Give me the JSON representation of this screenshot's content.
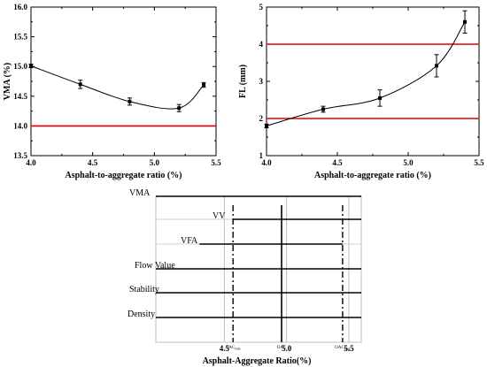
{
  "chart_data": [
    {
      "type": "scatter",
      "title": "",
      "xlabel": "Asphalt-to-aggregate ratio (%)",
      "ylabel": "VMA (%)",
      "xlim": [
        4.0,
        5.5
      ],
      "ylim": [
        13.5,
        16.0
      ],
      "xticks": [
        "4.0",
        "4.5",
        "5.0",
        "5.5"
      ],
      "yticks": [
        "13.5",
        "14.0",
        "14.5",
        "15.0",
        "15.5",
        "16.0"
      ],
      "series": [
        {
          "x": [
            4.0,
            4.4,
            4.8,
            5.2,
            5.4
          ],
          "y": [
            15.01,
            14.7,
            14.41,
            14.3,
            14.69
          ],
          "err": [
            0.03,
            0.07,
            0.06,
            0.06,
            0.04
          ]
        }
      ],
      "reference_lines": [
        {
          "axis": "y",
          "value": 14.0,
          "color": "#e00000"
        }
      ],
      "curve": "smooth fitted line through points"
    },
    {
      "type": "scatter",
      "title": "",
      "xlabel": "Asphalt-to-aggregate ratio (%)",
      "ylabel": "FL (mm)",
      "xlim": [
        4.0,
        5.5
      ],
      "ylim": [
        1.0,
        5.0
      ],
      "xticks": [
        "4.0",
        "4.5",
        "5.0",
        "5.5"
      ],
      "yticks": [
        "1",
        "2",
        "3",
        "4",
        "5"
      ],
      "series": [
        {
          "x": [
            4.0,
            4.4,
            4.8,
            5.2,
            5.4
          ],
          "y": [
            1.8,
            2.25,
            2.55,
            3.42,
            4.6
          ],
          "err": [
            0.05,
            0.08,
            0.22,
            0.3,
            0.3
          ]
        }
      ],
      "reference_lines": [
        {
          "axis": "y",
          "value": 2.0,
          "color": "#e00000"
        },
        {
          "axis": "y",
          "value": 4.0,
          "color": "#e00000"
        }
      ],
      "curve": "smooth fitted line through points"
    },
    {
      "type": "range",
      "title": "",
      "xlabel": "Asphalt-Aggregate Ratio(%)",
      "ylabel": "",
      "xlim": [
        3.95,
        5.6
      ],
      "xticks": [
        "4.5",
        "5.0",
        "5.5"
      ],
      "rows": [
        {
          "label": "VMA",
          "x_start": 3.95,
          "x_end": 5.6
        },
        {
          "label": "VV",
          "x_start": 4.57,
          "x_end": 5.6
        },
        {
          "label": "VFA",
          "x_start": 4.3,
          "x_end": 5.45
        },
        {
          "label": "Flow Value",
          "x_start": 3.95,
          "x_end": 5.6
        },
        {
          "label": "Stability",
          "x_start": 3.95,
          "x_end": 5.6
        },
        {
          "label": "Density",
          "x_start": 3.95,
          "x_end": 5.6
        }
      ],
      "markers": [
        {
          "label": "OAC",
          "sub": "min",
          "x": 4.57,
          "style": "dash-dot"
        },
        {
          "label": "OAC",
          "sub": "",
          "x": 4.96,
          "style": "solid"
        },
        {
          "label": "OAC",
          "sub": "max",
          "x": 5.45,
          "style": "dash-dot"
        }
      ]
    }
  ]
}
